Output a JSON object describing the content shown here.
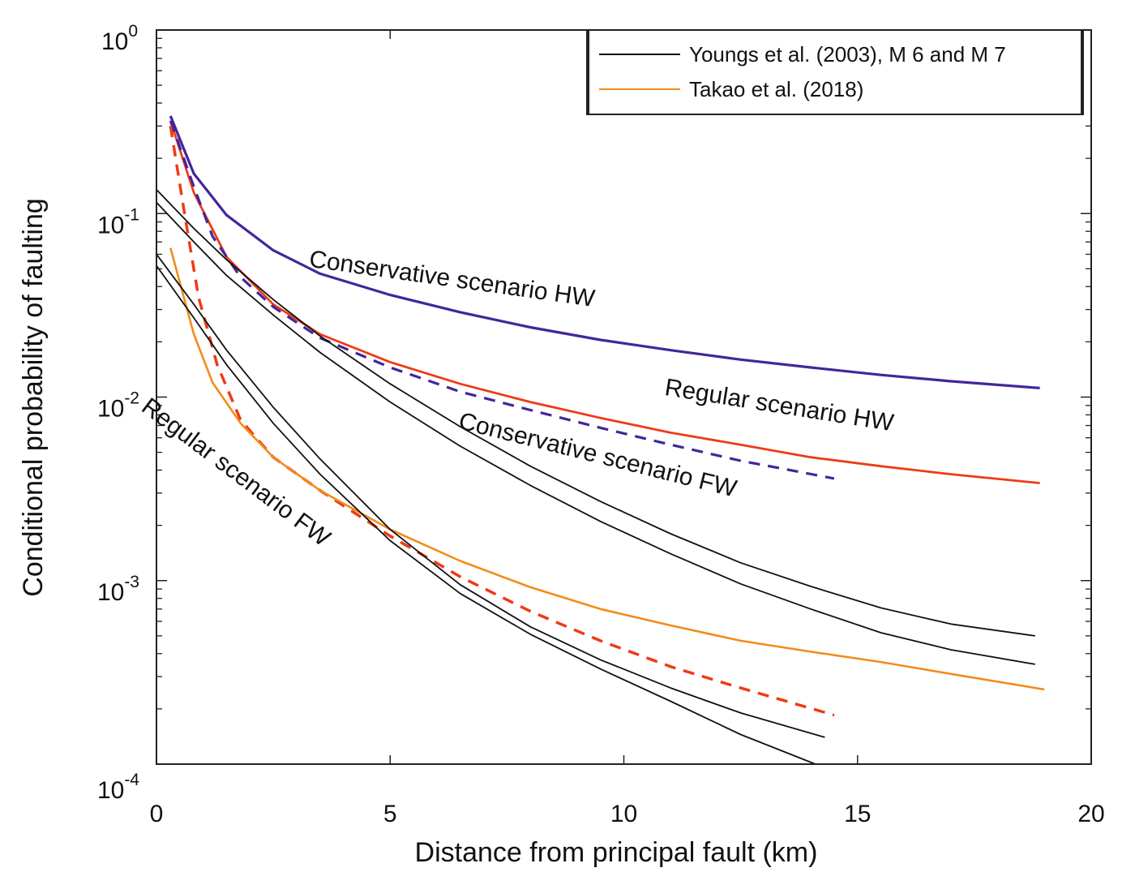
{
  "chart_data": {
    "type": "line",
    "title": "",
    "xlabel": "Distance from principal fault (km)",
    "ylabel": "Conditional probability of faulting",
    "xlim": [
      0,
      20
    ],
    "ylim": [
      0.0001,
      1
    ],
    "yscale": "log",
    "grid": false,
    "x_ticks": [
      {
        "value": 0,
        "label": "0"
      },
      {
        "value": 5,
        "label": "5"
      },
      {
        "value": 10,
        "label": "10"
      },
      {
        "value": 15,
        "label": "15"
      },
      {
        "value": 20,
        "label": "20"
      }
    ],
    "y_ticks": [
      {
        "value": 1,
        "base": "10",
        "exp": "0"
      },
      {
        "value": 0.1,
        "base": "10",
        "exp": "-1"
      },
      {
        "value": 0.01,
        "base": "10",
        "exp": "-2"
      },
      {
        "value": 0.001,
        "base": "10",
        "exp": "-3"
      },
      {
        "value": 0.0001,
        "base": "10",
        "exp": "-4"
      }
    ],
    "legend": {
      "position": "top-right",
      "entries": [
        {
          "label": "Youngs et al. (2003), M 6 and M 7",
          "color": "#111111"
        },
        {
          "label": "Takao et al. (2018)",
          "color": "#f28c1a"
        }
      ]
    },
    "series": [
      {
        "name": "Conservative scenario HW",
        "color": "#43269a",
        "style": "solid",
        "width": 3.2,
        "x": [
          0.3,
          0.8,
          1.5,
          2.5,
          3.5,
          5,
          6.5,
          8,
          9.5,
          11,
          12.5,
          14,
          15.5,
          17,
          18.9
        ],
        "y": [
          0.34,
          0.165,
          0.098,
          0.063,
          0.047,
          0.036,
          0.029,
          0.024,
          0.0205,
          0.018,
          0.016,
          0.0145,
          0.0132,
          0.0122,
          0.0112
        ]
      },
      {
        "name": "Regular scenario HW",
        "color": "#ee3b16",
        "style": "solid",
        "width": 2.8,
        "x": [
          0.3,
          0.8,
          1.5,
          2.5,
          3.5,
          5,
          6.5,
          8,
          9.5,
          11,
          12.5,
          14,
          15.5,
          17,
          18.9
        ],
        "y": [
          0.32,
          0.13,
          0.058,
          0.032,
          0.022,
          0.0155,
          0.0118,
          0.0094,
          0.0077,
          0.0064,
          0.0055,
          0.0047,
          0.0042,
          0.0038,
          0.0034
        ]
      },
      {
        "name": "Conservative scenario FW",
        "color": "#43269a",
        "style": "dashed",
        "width": 3.2,
        "x": [
          0.3,
          0.8,
          1.2,
          1.8,
          2.5,
          3.5,
          5,
          6.5,
          8,
          9.5,
          11,
          12.5,
          14.5
        ],
        "y": [
          0.32,
          0.14,
          0.075,
          0.045,
          0.031,
          0.021,
          0.0145,
          0.0107,
          0.0085,
          0.0068,
          0.0055,
          0.0045,
          0.0036
        ]
      },
      {
        "name": "Regular scenario FW",
        "color": "#ee3b16",
        "style": "dashed",
        "width": 3.5,
        "x": [
          0.3,
          0.6,
          0.9,
          1.3,
          1.8,
          2.5,
          3.5,
          5,
          6.5,
          8,
          9.5,
          11,
          12.5,
          14.5
        ],
        "y": [
          0.3,
          0.1,
          0.035,
          0.015,
          0.0075,
          0.0047,
          0.0031,
          0.00175,
          0.00105,
          0.00068,
          0.00047,
          0.00034,
          0.00026,
          0.000185
        ]
      },
      {
        "name": "Takao et al. (2018)",
        "color": "#f28c1a",
        "style": "solid",
        "width": 2.6,
        "x": [
          0.3,
          0.8,
          1.2,
          1.8,
          2.5,
          3.5,
          5,
          6.5,
          8,
          9.5,
          11,
          12.5,
          14,
          15.5,
          17,
          19
        ],
        "y": [
          0.065,
          0.022,
          0.012,
          0.0072,
          0.0047,
          0.0031,
          0.0019,
          0.00128,
          0.00092,
          0.0007,
          0.00057,
          0.00047,
          0.00041,
          0.00036,
          0.00031,
          0.000255
        ]
      },
      {
        "name": "Youngs et al. (2003) HW 1",
        "color": "#111111",
        "style": "solid",
        "width": 1.8,
        "x": [
          0,
          0.8,
          1.5,
          2.5,
          3.5,
          5,
          6.5,
          8,
          9.5,
          11,
          12.5,
          14,
          15.5,
          17,
          18.8
        ],
        "y": [
          0.135,
          0.083,
          0.056,
          0.034,
          0.0215,
          0.0118,
          0.0069,
          0.0042,
          0.0027,
          0.0018,
          0.00125,
          0.00093,
          0.00071,
          0.00058,
          0.0005
        ]
      },
      {
        "name": "Youngs et al. (2003) HW 2",
        "color": "#111111",
        "style": "solid",
        "width": 1.8,
        "x": [
          0,
          0.8,
          1.5,
          2.5,
          3.5,
          5,
          6.5,
          8,
          9.5,
          11,
          12.5,
          14,
          15.5,
          17,
          18.8
        ],
        "y": [
          0.115,
          0.07,
          0.046,
          0.028,
          0.0175,
          0.0094,
          0.0054,
          0.0033,
          0.0021,
          0.0014,
          0.00096,
          0.0007,
          0.00052,
          0.00042,
          0.00035
        ]
      },
      {
        "name": "Youngs et al. (2003) FW 1",
        "color": "#111111",
        "style": "solid",
        "width": 1.8,
        "x": [
          0,
          0.8,
          1.5,
          2.5,
          3.5,
          5,
          6.5,
          8,
          9.5,
          11,
          12.5,
          14.3
        ],
        "y": [
          0.06,
          0.032,
          0.018,
          0.0088,
          0.0046,
          0.0019,
          0.00095,
          0.00056,
          0.00037,
          0.00026,
          0.00019,
          0.00014
        ]
      },
      {
        "name": "Youngs et al. (2003) FW 2",
        "color": "#111111",
        "style": "solid",
        "width": 1.8,
        "x": [
          0,
          0.8,
          1.5,
          2.5,
          3.5,
          5,
          6.5,
          8,
          9.5,
          11,
          12.5,
          14.1
        ],
        "y": [
          0.052,
          0.027,
          0.015,
          0.0072,
          0.0038,
          0.00165,
          0.00085,
          0.00051,
          0.00033,
          0.00022,
          0.000145,
          0.0001
        ]
      }
    ],
    "annotations": [
      {
        "text": "Conservative scenario HW",
        "x": 6.3,
        "y": 0.04,
        "rotation": 8
      },
      {
        "text": "Regular scenario HW",
        "x": 13.3,
        "y": 0.0082,
        "rotation": 9
      },
      {
        "text": "Conservative scenario FW",
        "x": 9.4,
        "y": 0.0044,
        "rotation": 14
      },
      {
        "text": "Regular scenario FW",
        "x": 1.6,
        "y": 0.0036,
        "rotation": 37
      }
    ]
  }
}
